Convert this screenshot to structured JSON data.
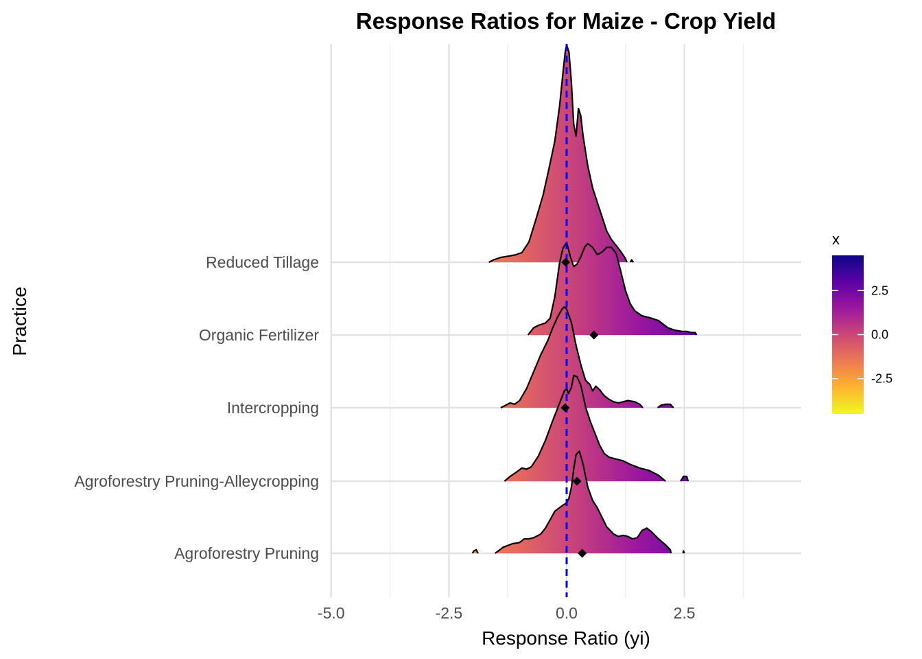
{
  "chart_data": {
    "type": "ridgeline",
    "title": "Response Ratios for Maize - Crop Yield",
    "xlabel": "Response Ratio (yi)",
    "ylabel": "Practice",
    "xlim": [
      -5,
      5
    ],
    "x_ticks": [
      -5.0,
      -2.5,
      0.0,
      2.5
    ],
    "x_tick_labels": [
      "-5.0",
      "-2.5",
      "0.0",
      "2.5"
    ],
    "reference_line": {
      "x": 0,
      "color": "#0000ff",
      "style": "dashed"
    },
    "categories": [
      "Agroforestry Pruning",
      "Agroforestry Pruning-Alleycropping",
      "Intercropping",
      "Organic Fertilizer",
      "Reduced Tillage"
    ],
    "mean_markers": [
      0.33,
      0.22,
      -0.03,
      0.58,
      -0.02
    ],
    "densities": [
      {
        "name": "Agroforestry Pruning",
        "segments": [
          [
            [
              -2.0,
              0
            ],
            [
              -1.97,
              0.02
            ],
            [
              -1.92,
              0.03
            ],
            [
              -1.88,
              0
            ]
          ],
          [
            [
              -1.52,
              0
            ],
            [
              -1.45,
              0.02
            ],
            [
              -1.35,
              0.05
            ],
            [
              -1.15,
              0.08
            ],
            [
              -1.0,
              0.09
            ],
            [
              -0.9,
              0.12
            ],
            [
              -0.8,
              0.12
            ],
            [
              -0.7,
              0.13
            ],
            [
              -0.55,
              0.16
            ],
            [
              -0.45,
              0.21
            ],
            [
              -0.35,
              0.28
            ],
            [
              -0.25,
              0.35
            ],
            [
              -0.15,
              0.38
            ],
            [
              -0.08,
              0.4
            ],
            [
              0.0,
              0.42
            ],
            [
              0.05,
              0.46
            ],
            [
              0.1,
              0.55
            ],
            [
              0.15,
              0.7
            ],
            [
              0.2,
              0.82
            ],
            [
              0.27,
              0.85
            ],
            [
              0.35,
              0.74
            ],
            [
              0.45,
              0.55
            ],
            [
              0.55,
              0.44
            ],
            [
              0.65,
              0.38
            ],
            [
              0.75,
              0.3
            ],
            [
              0.85,
              0.22
            ],
            [
              1.0,
              0.16
            ],
            [
              1.1,
              0.14
            ],
            [
              1.2,
              0.15
            ],
            [
              1.3,
              0.14
            ],
            [
              1.4,
              0.12
            ],
            [
              1.5,
              0.13
            ],
            [
              1.6,
              0.19
            ],
            [
              1.7,
              0.21
            ],
            [
              1.8,
              0.18
            ],
            [
              1.95,
              0.12
            ],
            [
              2.1,
              0.07
            ],
            [
              2.2,
              0.03
            ],
            [
              2.22,
              0
            ]
          ],
          [
            [
              2.47,
              0
            ],
            [
              2.48,
              0.02
            ],
            [
              2.5,
              0
            ]
          ]
        ]
      },
      {
        "name": "Agroforestry Pruning-Alleycropping",
        "segments": [
          [
            [
              -1.32,
              0
            ],
            [
              -1.2,
              0.04
            ],
            [
              -1.05,
              0.08
            ],
            [
              -0.95,
              0.11
            ],
            [
              -0.85,
              0.1
            ],
            [
              -0.75,
              0.12
            ],
            [
              -0.6,
              0.21
            ],
            [
              -0.45,
              0.34
            ],
            [
              -0.3,
              0.5
            ],
            [
              -0.15,
              0.65
            ],
            [
              -0.05,
              0.75
            ],
            [
              0.0,
              0.77
            ],
            [
              0.04,
              0.73
            ],
            [
              0.1,
              0.78
            ],
            [
              0.15,
              0.88
            ],
            [
              0.22,
              0.87
            ],
            [
              0.3,
              0.8
            ],
            [
              0.4,
              0.62
            ],
            [
              0.5,
              0.5
            ],
            [
              0.6,
              0.4
            ],
            [
              0.7,
              0.3
            ],
            [
              0.8,
              0.23
            ],
            [
              0.9,
              0.2
            ],
            [
              1.0,
              0.19
            ],
            [
              1.2,
              0.17
            ],
            [
              1.35,
              0.14
            ],
            [
              1.55,
              0.11
            ],
            [
              1.75,
              0.09
            ],
            [
              1.95,
              0.05
            ],
            [
              2.1,
              0
            ]
          ],
          [
            [
              2.42,
              0
            ],
            [
              2.48,
              0.04
            ],
            [
              2.55,
              0.04
            ],
            [
              2.58,
              0
            ]
          ]
        ]
      },
      {
        "name": "Intercropping",
        "segments": [
          [
            [
              -1.4,
              0
            ],
            [
              -1.3,
              0.02
            ],
            [
              -1.2,
              0.04
            ],
            [
              -1.1,
              0.03
            ],
            [
              -1.0,
              0.06
            ],
            [
              -0.85,
              0.16
            ],
            [
              -0.7,
              0.3
            ],
            [
              -0.55,
              0.44
            ],
            [
              -0.4,
              0.56
            ],
            [
              -0.3,
              0.66
            ],
            [
              -0.2,
              0.75
            ],
            [
              -0.1,
              0.82
            ],
            [
              -0.05,
              0.84
            ],
            [
              0.0,
              0.82
            ],
            [
              0.1,
              0.71
            ],
            [
              0.2,
              0.52
            ],
            [
              0.3,
              0.36
            ],
            [
              0.4,
              0.23
            ],
            [
              0.5,
              0.19
            ],
            [
              0.55,
              0.14
            ],
            [
              0.62,
              0.18
            ],
            [
              0.7,
              0.15
            ],
            [
              0.8,
              0.1
            ],
            [
              0.9,
              0.07
            ],
            [
              1.0,
              0.05
            ],
            [
              1.1,
              0.04
            ],
            [
              1.2,
              0.05
            ],
            [
              1.3,
              0.06
            ],
            [
              1.45,
              0.05
            ],
            [
              1.55,
              0.03
            ],
            [
              1.62,
              0
            ]
          ],
          [
            [
              1.93,
              0
            ],
            [
              2.0,
              0.02
            ],
            [
              2.1,
              0.03
            ],
            [
              2.2,
              0.03
            ],
            [
              2.27,
              0
            ]
          ]
        ]
      },
      {
        "name": "Organic Fertilizer",
        "segments": [
          [
            [
              -0.82,
              0
            ],
            [
              -0.7,
              0.06
            ],
            [
              -0.6,
              0.08
            ],
            [
              -0.45,
              0.1
            ],
            [
              -0.35,
              0.14
            ],
            [
              -0.25,
              0.32
            ],
            [
              -0.15,
              0.6
            ],
            [
              -0.08,
              0.72
            ],
            [
              0.0,
              0.77
            ],
            [
              0.08,
              0.65
            ],
            [
              0.15,
              0.57
            ],
            [
              0.22,
              0.59
            ],
            [
              0.3,
              0.65
            ],
            [
              0.38,
              0.73
            ],
            [
              0.45,
              0.76
            ],
            [
              0.55,
              0.73
            ],
            [
              0.65,
              0.67
            ],
            [
              0.75,
              0.69
            ],
            [
              0.85,
              0.73
            ],
            [
              0.95,
              0.73
            ],
            [
              1.05,
              0.68
            ],
            [
              1.15,
              0.53
            ],
            [
              1.25,
              0.37
            ],
            [
              1.35,
              0.26
            ],
            [
              1.45,
              0.2
            ],
            [
              1.6,
              0.16
            ],
            [
              1.8,
              0.14
            ],
            [
              1.95,
              0.12
            ],
            [
              2.05,
              0.09
            ],
            [
              2.15,
              0.06
            ],
            [
              2.3,
              0.04
            ],
            [
              2.45,
              0.03
            ],
            [
              2.55,
              0.03
            ],
            [
              2.65,
              0.02
            ],
            [
              2.73,
              0.02
            ],
            [
              2.76,
              0
            ]
          ]
        ]
      },
      {
        "name": "Reduced Tillage",
        "segments": [
          [
            [
              -1.65,
              0
            ],
            [
              -1.55,
              0.02
            ],
            [
              -1.4,
              0.04
            ],
            [
              -1.25,
              0.05
            ],
            [
              -1.1,
              0.06
            ],
            [
              -0.95,
              0.08
            ],
            [
              -0.8,
              0.17
            ],
            [
              -0.65,
              0.36
            ],
            [
              -0.5,
              0.56
            ],
            [
              -0.38,
              0.77
            ],
            [
              -0.25,
              1.01
            ],
            [
              -0.15,
              1.3
            ],
            [
              -0.08,
              1.57
            ],
            [
              -0.03,
              1.75
            ],
            [
              0.0,
              1.81
            ],
            [
              0.05,
              1.75
            ],
            [
              0.1,
              1.5
            ],
            [
              0.15,
              1.15
            ],
            [
              0.2,
              1.05
            ],
            [
              0.25,
              1.28
            ],
            [
              0.3,
              1.22
            ],
            [
              0.35,
              1.05
            ],
            [
              0.45,
              0.8
            ],
            [
              0.55,
              0.62
            ],
            [
              0.65,
              0.5
            ],
            [
              0.75,
              0.38
            ],
            [
              0.85,
              0.26
            ],
            [
              0.95,
              0.19
            ],
            [
              1.05,
              0.14
            ],
            [
              1.15,
              0.09
            ],
            [
              1.25,
              0.03
            ],
            [
              1.28,
              0
            ]
          ],
          [
            [
              1.35,
              0
            ],
            [
              1.38,
              0.02
            ],
            [
              1.42,
              0
            ]
          ]
        ]
      }
    ],
    "fill_colorscale": {
      "name": "plasma",
      "domain": [
        -4.5,
        4.5
      ],
      "colors": [
        "#f0f921",
        "#fdb42f",
        "#ed7953",
        "#cc4778",
        "#9c179e",
        "#5c01a6",
        "#0d0887"
      ]
    },
    "legend": {
      "title": "x",
      "ticks": [
        2.5,
        0.0,
        -2.5
      ],
      "tick_labels": [
        "2.5",
        "0.0",
        "-2.5"
      ],
      "position": "right"
    }
  }
}
